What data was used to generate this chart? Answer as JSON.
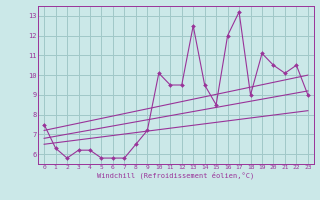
{
  "xlabel": "Windchill (Refroidissement éolien,°C)",
  "ylabel": "",
  "bg_color": "#cbe8e8",
  "grid_color": "#a0c8c8",
  "line_color": "#993399",
  "xlim": [
    -0.5,
    23.5
  ],
  "ylim": [
    5.5,
    13.5
  ],
  "yticks": [
    6,
    7,
    8,
    9,
    10,
    11,
    12,
    13
  ],
  "xticks": [
    0,
    1,
    2,
    3,
    4,
    5,
    6,
    7,
    8,
    9,
    10,
    11,
    12,
    13,
    14,
    15,
    16,
    17,
    18,
    19,
    20,
    21,
    22,
    23
  ],
  "data_x": [
    0,
    1,
    2,
    3,
    4,
    5,
    6,
    7,
    8,
    9,
    10,
    11,
    12,
    13,
    14,
    15,
    16,
    17,
    18,
    19,
    20,
    21,
    22,
    23
  ],
  "data_y": [
    7.5,
    6.3,
    5.8,
    6.2,
    6.2,
    5.8,
    5.8,
    5.8,
    6.5,
    7.2,
    10.1,
    9.5,
    9.5,
    12.5,
    9.5,
    8.5,
    12.0,
    13.2,
    9.0,
    11.1,
    10.5,
    10.1,
    10.5,
    9.0
  ],
  "trend1_x": [
    0,
    23
  ],
  "trend1_y": [
    6.5,
    8.2
  ],
  "trend2_x": [
    0,
    23
  ],
  "trend2_y": [
    6.8,
    9.2
  ],
  "trend3_x": [
    0,
    23
  ],
  "trend3_y": [
    7.2,
    10.0
  ]
}
